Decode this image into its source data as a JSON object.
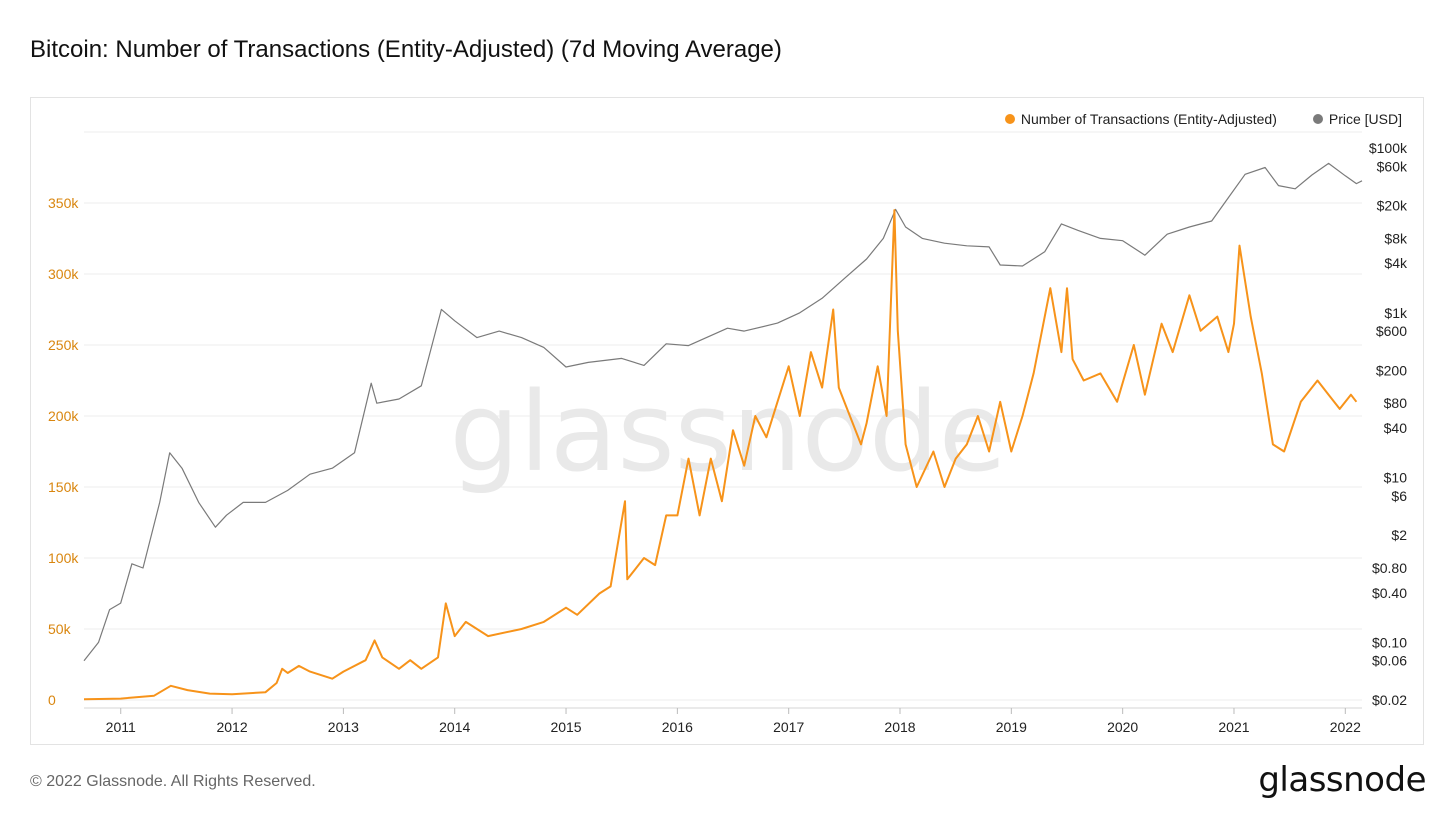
{
  "page": {
    "title": "Bitcoin: Number of Transactions (Entity-Adjusted) (7d Moving Average)",
    "footer": "© 2022 Glassnode. All Rights Reserved.",
    "logo": "glassnode",
    "watermark": "glassnode"
  },
  "colors": {
    "tx": "#f7931a",
    "price": "#7a7a7a",
    "left_axis": "#d9860f",
    "grid": "#eeeeee"
  },
  "chart_data": {
    "type": "line",
    "title": "Bitcoin: Number of Transactions (Entity-Adjusted) (7d Moving Average)",
    "x_ticks": [
      "2011",
      "2012",
      "2013",
      "2014",
      "2015",
      "2016",
      "2017",
      "2018",
      "2019",
      "2020",
      "2021",
      "2022"
    ],
    "xlim": [
      2010.67,
      2022.15
    ],
    "y_left": {
      "ticks": [
        0,
        50000,
        100000,
        150000,
        200000,
        250000,
        300000,
        350000
      ],
      "tick_labels": [
        "0",
        "50k",
        "100k",
        "150k",
        "200k",
        "250k",
        "300k",
        "350k"
      ],
      "lim": [
        0,
        400000
      ]
    },
    "y_right": {
      "scale": "log",
      "ticks": [
        0.02,
        0.06,
        0.1,
        0.4,
        0.8,
        2,
        6,
        10,
        40,
        80,
        200,
        600,
        1000,
        4000,
        8000,
        20000,
        60000,
        100000
      ],
      "tick_labels": [
        "$0.02",
        "$0.06",
        "$0.10",
        "$0.40",
        "$0.80",
        "$2",
        "$6",
        "$10",
        "$40",
        "$80",
        "$200",
        "$600",
        "$1k",
        "$4k",
        "$8k",
        "$20k",
        "$60k",
        "$100k"
      ]
    },
    "legend_position": "top-right",
    "grid": true,
    "series": [
      {
        "name": "Number of Transactions (Entity-Adjusted)",
        "axis": "left",
        "points": [
          [
            2010.67,
            500
          ],
          [
            2011.0,
            1000
          ],
          [
            2011.3,
            3000
          ],
          [
            2011.45,
            10000
          ],
          [
            2011.6,
            7000
          ],
          [
            2011.8,
            4500
          ],
          [
            2012.0,
            4000
          ],
          [
            2012.3,
            5500
          ],
          [
            2012.4,
            12000
          ],
          [
            2012.45,
            22000
          ],
          [
            2012.5,
            19000
          ],
          [
            2012.6,
            24000
          ],
          [
            2012.7,
            20000
          ],
          [
            2012.9,
            15000
          ],
          [
            2013.0,
            20000
          ],
          [
            2013.2,
            28000
          ],
          [
            2013.28,
            42000
          ],
          [
            2013.35,
            30000
          ],
          [
            2013.5,
            22000
          ],
          [
            2013.6,
            28000
          ],
          [
            2013.7,
            22000
          ],
          [
            2013.85,
            30000
          ],
          [
            2013.92,
            68000
          ],
          [
            2014.0,
            45000
          ],
          [
            2014.1,
            55000
          ],
          [
            2014.3,
            45000
          ],
          [
            2014.6,
            50000
          ],
          [
            2014.8,
            55000
          ],
          [
            2015.0,
            65000
          ],
          [
            2015.1,
            60000
          ],
          [
            2015.3,
            75000
          ],
          [
            2015.4,
            80000
          ],
          [
            2015.53,
            140000
          ],
          [
            2015.55,
            85000
          ],
          [
            2015.7,
            100000
          ],
          [
            2015.8,
            95000
          ],
          [
            2015.9,
            130000
          ],
          [
            2016.0,
            130000
          ],
          [
            2016.1,
            170000
          ],
          [
            2016.2,
            130000
          ],
          [
            2016.3,
            170000
          ],
          [
            2016.4,
            140000
          ],
          [
            2016.5,
            190000
          ],
          [
            2016.6,
            165000
          ],
          [
            2016.7,
            200000
          ],
          [
            2016.8,
            185000
          ],
          [
            2016.9,
            210000
          ],
          [
            2017.0,
            235000
          ],
          [
            2017.1,
            200000
          ],
          [
            2017.2,
            245000
          ],
          [
            2017.3,
            220000
          ],
          [
            2017.4,
            275000
          ],
          [
            2017.45,
            220000
          ],
          [
            2017.55,
            200000
          ],
          [
            2017.65,
            180000
          ],
          [
            2017.7,
            195000
          ],
          [
            2017.8,
            235000
          ],
          [
            2017.88,
            200000
          ],
          [
            2017.95,
            345000
          ],
          [
            2017.98,
            260000
          ],
          [
            2018.05,
            180000
          ],
          [
            2018.15,
            150000
          ],
          [
            2018.3,
            175000
          ],
          [
            2018.4,
            150000
          ],
          [
            2018.5,
            170000
          ],
          [
            2018.6,
            180000
          ],
          [
            2018.7,
            200000
          ],
          [
            2018.8,
            175000
          ],
          [
            2018.9,
            210000
          ],
          [
            2019.0,
            175000
          ],
          [
            2019.1,
            200000
          ],
          [
            2019.2,
            230000
          ],
          [
            2019.35,
            290000
          ],
          [
            2019.45,
            245000
          ],
          [
            2019.5,
            290000
          ],
          [
            2019.55,
            240000
          ],
          [
            2019.65,
            225000
          ],
          [
            2019.8,
            230000
          ],
          [
            2019.95,
            210000
          ],
          [
            2020.1,
            250000
          ],
          [
            2020.2,
            215000
          ],
          [
            2020.35,
            265000
          ],
          [
            2020.45,
            245000
          ],
          [
            2020.6,
            285000
          ],
          [
            2020.7,
            260000
          ],
          [
            2020.85,
            270000
          ],
          [
            2020.95,
            245000
          ],
          [
            2021.0,
            265000
          ],
          [
            2021.05,
            320000
          ],
          [
            2021.15,
            270000
          ],
          [
            2021.25,
            230000
          ],
          [
            2021.35,
            180000
          ],
          [
            2021.45,
            175000
          ],
          [
            2021.6,
            210000
          ],
          [
            2021.75,
            225000
          ],
          [
            2021.85,
            215000
          ],
          [
            2021.95,
            205000
          ],
          [
            2022.05,
            215000
          ],
          [
            2022.1,
            210000
          ]
        ]
      },
      {
        "name": "Price [USD]",
        "axis": "right",
        "points": [
          [
            2010.67,
            0.06
          ],
          [
            2010.8,
            0.1
          ],
          [
            2010.9,
            0.25
          ],
          [
            2011.0,
            0.3
          ],
          [
            2011.1,
            0.9
          ],
          [
            2011.2,
            0.8
          ],
          [
            2011.35,
            5
          ],
          [
            2011.44,
            20
          ],
          [
            2011.55,
            13
          ],
          [
            2011.7,
            5
          ],
          [
            2011.85,
            2.5
          ],
          [
            2011.95,
            3.5
          ],
          [
            2012.1,
            5
          ],
          [
            2012.3,
            5
          ],
          [
            2012.5,
            7
          ],
          [
            2012.7,
            11
          ],
          [
            2012.9,
            13
          ],
          [
            2013.1,
            20
          ],
          [
            2013.25,
            140
          ],
          [
            2013.3,
            80
          ],
          [
            2013.5,
            90
          ],
          [
            2013.7,
            130
          ],
          [
            2013.88,
            1100
          ],
          [
            2014.0,
            800
          ],
          [
            2014.2,
            500
          ],
          [
            2014.4,
            600
          ],
          [
            2014.6,
            500
          ],
          [
            2014.8,
            380
          ],
          [
            2015.0,
            220
          ],
          [
            2015.2,
            250
          ],
          [
            2015.5,
            280
          ],
          [
            2015.7,
            230
          ],
          [
            2015.9,
            420
          ],
          [
            2016.1,
            400
          ],
          [
            2016.45,
            650
          ],
          [
            2016.6,
            600
          ],
          [
            2016.9,
            750
          ],
          [
            2017.1,
            1000
          ],
          [
            2017.3,
            1500
          ],
          [
            2017.5,
            2600
          ],
          [
            2017.7,
            4500
          ],
          [
            2017.85,
            8000
          ],
          [
            2017.96,
            18000
          ],
          [
            2018.05,
            11000
          ],
          [
            2018.2,
            8000
          ],
          [
            2018.4,
            7000
          ],
          [
            2018.6,
            6500
          ],
          [
            2018.8,
            6300
          ],
          [
            2018.9,
            3800
          ],
          [
            2019.1,
            3700
          ],
          [
            2019.3,
            5500
          ],
          [
            2019.45,
            12000
          ],
          [
            2019.6,
            10000
          ],
          [
            2019.8,
            8000
          ],
          [
            2020.0,
            7500
          ],
          [
            2020.2,
            5000
          ],
          [
            2020.4,
            9000
          ],
          [
            2020.6,
            11000
          ],
          [
            2020.8,
            13000
          ],
          [
            2020.95,
            25000
          ],
          [
            2021.1,
            48000
          ],
          [
            2021.28,
            58000
          ],
          [
            2021.4,
            35000
          ],
          [
            2021.55,
            32000
          ],
          [
            2021.7,
            47000
          ],
          [
            2021.85,
            65000
          ],
          [
            2022.0,
            46000
          ],
          [
            2022.1,
            37000
          ],
          [
            2022.15,
            40000
          ]
        ]
      }
    ]
  }
}
